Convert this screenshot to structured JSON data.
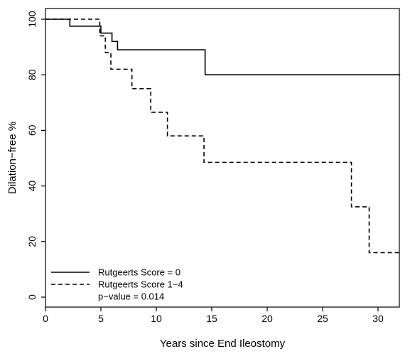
{
  "chart_data": {
    "type": "line",
    "step": true,
    "xlabel": "Years since End Ileostomy",
    "ylabel": "Dilation−free %",
    "xlim": [
      0,
      32.5
    ],
    "ylim": [
      0,
      100
    ],
    "xticks": [
      0,
      5,
      10,
      15,
      20,
      25,
      30
    ],
    "yticks": [
      0,
      20,
      40,
      60,
      80,
      100
    ],
    "grid": false,
    "legend_position": "bottom-left",
    "series": [
      {
        "name": "Rutgeerts Score = 0",
        "style": "solid",
        "x": [
          0,
          2.2,
          5.0,
          6.0,
          6.5,
          14.4,
          32.0
        ],
        "y": [
          100,
          97.5,
          95,
          92,
          89,
          80,
          80
        ]
      },
      {
        "name": "Rutgeerts Score 1−4",
        "style": "dashed",
        "x": [
          0,
          4.9,
          5.4,
          5.9,
          7.8,
          9.5,
          11.0,
          14.3,
          27.6,
          29.2,
          32.0
        ],
        "y": [
          100,
          94,
          88,
          82,
          75,
          66.5,
          58,
          48.5,
          32.5,
          16,
          16
        ]
      }
    ],
    "annotation": "p−value =  0.014"
  }
}
